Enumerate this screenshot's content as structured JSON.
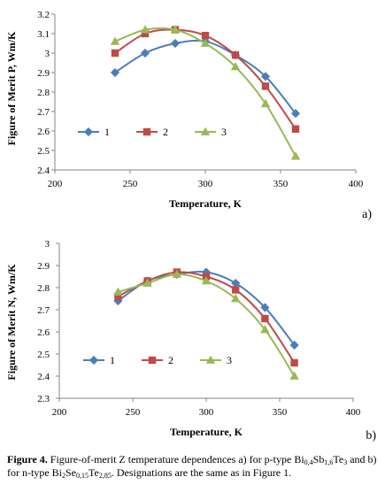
{
  "charts": {
    "a": {
      "panel": "a)",
      "ylabel": "Figure of Merit P, Wm/K",
      "xlabel": "Temperature, K",
      "yticks": [
        "2.4",
        "2.5",
        "2.6",
        "2.7",
        "2.8",
        "2.9",
        "3",
        "3.1",
        "3.2"
      ],
      "xticks": [
        "200",
        "250",
        "300",
        "350",
        "400"
      ]
    },
    "b": {
      "panel": "b)",
      "ylabel": "Figure of Merit N, Wm/K",
      "xlabel": "Temperature, K",
      "yticks": [
        "2.3",
        "2.4",
        "2.5",
        "2.6",
        "2.7",
        "2.8",
        "2.9",
        "3"
      ],
      "xticks": [
        "200",
        "250",
        "300",
        "350",
        "400"
      ]
    }
  },
  "legend": [
    "1",
    "2",
    "3"
  ],
  "colors": {
    "s1": "#4a7ebb",
    "s2": "#be4b48",
    "s3": "#98b954"
  },
  "caption": {
    "fig": "Figure 4.",
    "t1": " Figure-of-merit Z temperature dependences a) for p-type Bi",
    "s1": "0,4",
    "t2": "Sb",
    "s2": "1,6",
    "t3": "Te",
    "s3": "3",
    "t4": " and b) for n-type Bi",
    "s4": "2",
    "t5": "Se",
    "s5": "0,15",
    "t6": "Te",
    "s6": "2,85",
    "t7": ". Designations are the same as in Figure 1."
  },
  "chart_data": [
    {
      "type": "line",
      "panel": "a)",
      "ylabel": "Figure of Merit P, Wm/K",
      "xlabel": "Temperature, K",
      "xlim": [
        200,
        400
      ],
      "ylim": [
        2.4,
        3.2
      ],
      "grid": false,
      "legend_position": "bottom-left",
      "series": [
        {
          "name": "1",
          "marker": "diamond",
          "x": [
            240,
            260,
            280,
            300,
            320,
            340,
            360
          ],
          "y": [
            2.9,
            3.0,
            3.05,
            3.06,
            2.99,
            2.88,
            2.69
          ]
        },
        {
          "name": "2",
          "marker": "square",
          "x": [
            240,
            260,
            280,
            300,
            320,
            340,
            360
          ],
          "y": [
            3.0,
            3.1,
            3.12,
            3.09,
            2.99,
            2.83,
            2.61
          ]
        },
        {
          "name": "3",
          "marker": "triangle",
          "x": [
            240,
            260,
            280,
            300,
            320,
            340,
            360
          ],
          "y": [
            3.06,
            3.12,
            3.12,
            3.05,
            2.93,
            2.74,
            2.47
          ]
        }
      ]
    },
    {
      "type": "line",
      "panel": "b)",
      "ylabel": "Figure of Merit N, Wm/K",
      "xlabel": "Temperature, K",
      "xlim": [
        200,
        400
      ],
      "ylim": [
        2.3,
        3.0
      ],
      "grid": false,
      "legend_position": "bottom-left",
      "series": [
        {
          "name": "1",
          "marker": "diamond",
          "x": [
            240,
            260,
            280,
            300,
            320,
            340,
            360
          ],
          "y": [
            2.74,
            2.83,
            2.86,
            2.87,
            2.82,
            2.71,
            2.54
          ]
        },
        {
          "name": "2",
          "marker": "square",
          "x": [
            240,
            260,
            280,
            300,
            320,
            340,
            360
          ],
          "y": [
            2.76,
            2.83,
            2.87,
            2.85,
            2.79,
            2.66,
            2.46
          ]
        },
        {
          "name": "3",
          "marker": "triangle",
          "x": [
            240,
            260,
            280,
            300,
            320,
            340,
            360
          ],
          "y": [
            2.78,
            2.82,
            2.86,
            2.83,
            2.75,
            2.61,
            2.4
          ]
        }
      ]
    }
  ]
}
